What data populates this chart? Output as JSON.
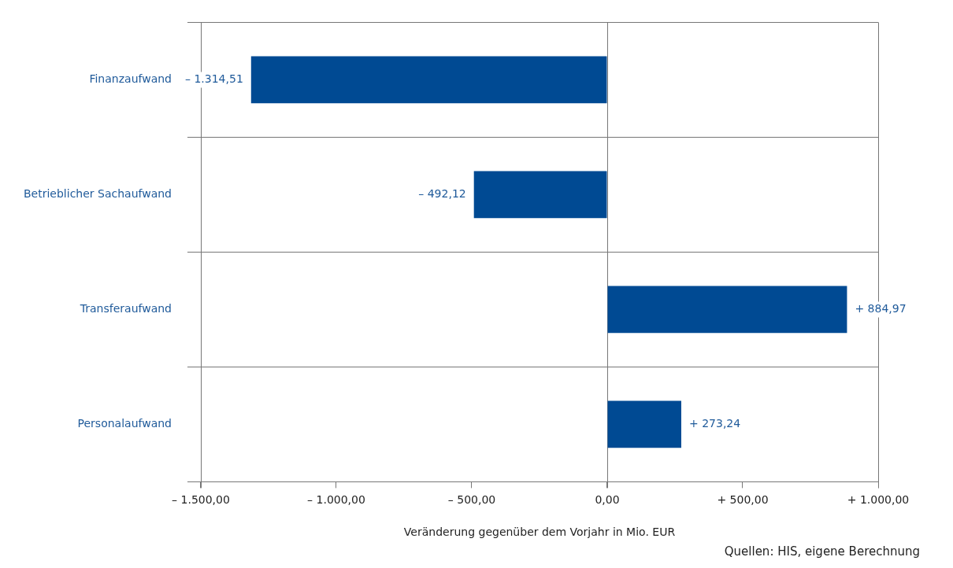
{
  "chart_data": {
    "type": "bar",
    "orientation": "horizontal",
    "categories": [
      "Finanzaufwand",
      "Betrieblicher Sachaufwand",
      "Transferaufwand",
      "Personalaufwand"
    ],
    "values": [
      -1314.51,
      -492.12,
      884.97,
      273.24
    ],
    "value_labels": [
      "– 1.314,51",
      "– 492,12",
      "+ 884,97",
      "+ 273,24"
    ],
    "color": "#004a93",
    "xlim": [
      -1500,
      1000
    ],
    "xticks": [
      {
        "value": -1500,
        "label": "– 1.500,00"
      },
      {
        "value": -1000,
        "label": "– 1.000,00"
      },
      {
        "value": -500,
        "label": "– 500,00"
      },
      {
        "value": 0,
        "label": "0,00"
      },
      {
        "value": 500,
        "label": "+ 500,00"
      },
      {
        "value": 1000,
        "label": "+ 1.000,00"
      }
    ],
    "xlabel": "Veränderung gegenüber dem Vorjahr in Mio. EUR",
    "annotations": [
      "Quellen: HIS, eigene Berechnung"
    ],
    "grid": true,
    "legend": false
  }
}
